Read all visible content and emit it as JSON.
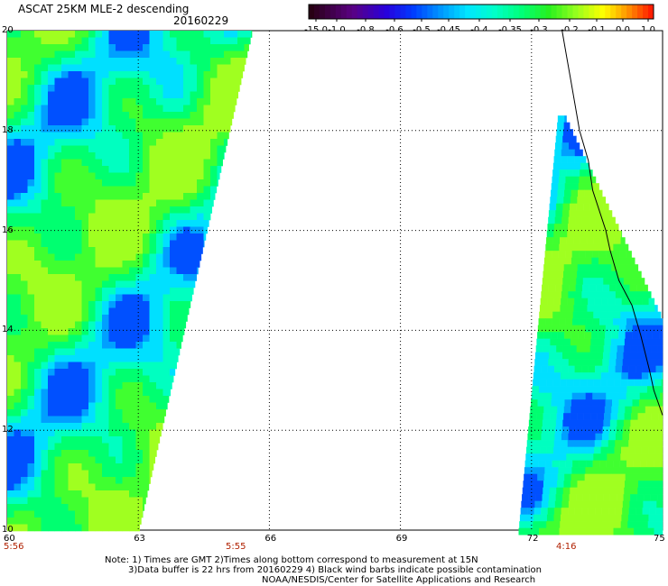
{
  "header": {
    "title": "ASCAT 25KM MLE-2 descending",
    "date": "20160229"
  },
  "colorbar": {
    "labels": [
      "-15.0",
      "-1.0",
      "-0.8",
      "-0.6",
      "-0.5",
      "-0.45",
      "-0.4",
      "-0.35",
      "-0.3",
      "-0.2",
      "-0.1",
      "0.0",
      "1.0"
    ],
    "colors": [
      "#200010",
      "#5a007a",
      "#2a00d8",
      "#0040ff",
      "#0090ff",
      "#00d8ff",
      "#00ffd0",
      "#00ff80",
      "#20f020",
      "#90ff20",
      "#ffff00",
      "#ff9000",
      "#ff2000"
    ]
  },
  "map": {
    "lat_labels": [
      "20",
      "18",
      "16",
      "14",
      "12",
      "10"
    ],
    "lon_labels": [
      "60",
      "63",
      "66",
      "69",
      "72",
      "75"
    ],
    "time_labels": [
      "5:56",
      "5:55",
      "4:16"
    ],
    "lon_range": [
      60,
      75
    ],
    "lat_range": [
      10,
      20
    ]
  },
  "notes": {
    "line1": "Note: 1) Times are GMT 2)Times along bottom correspond to measurement at 15N",
    "line2": "3)Data buffer is 22 hrs from 20160229 4) Black wind barbs indicate possible contamination",
    "line3": "NOAA/NESDIS/Center for Satellite Applications and Research"
  }
}
